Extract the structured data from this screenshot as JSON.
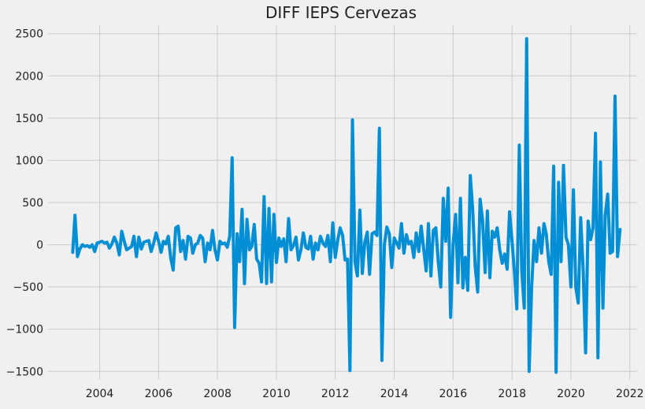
{
  "chart_data": {
    "type": "line",
    "title": "DIFF IEPS Cervezas",
    "xlabel": "",
    "ylabel": "",
    "x_axis_kind": "date",
    "xlim": [
      "2002-04-01",
      "2022-04-01"
    ],
    "ylim": [
      -1600,
      2600
    ],
    "x_ticks": [
      {
        "value": "2004-01-01",
        "label": "2004"
      },
      {
        "value": "2006-01-01",
        "label": "2006"
      },
      {
        "value": "2008-01-01",
        "label": "2008"
      },
      {
        "value": "2010-01-01",
        "label": "2010"
      },
      {
        "value": "2012-01-01",
        "label": "2012"
      },
      {
        "value": "2014-01-01",
        "label": "2014"
      },
      {
        "value": "2016-01-01",
        "label": "2016"
      },
      {
        "value": "2018-01-01",
        "label": "2018"
      },
      {
        "value": "2020-01-01",
        "label": "2020"
      },
      {
        "value": "2022-01-01",
        "label": "2022"
      }
    ],
    "y_ticks": [
      {
        "value": 2500,
        "label": "2500"
      },
      {
        "value": 2000,
        "label": "2000"
      },
      {
        "value": 1500,
        "label": "1500"
      },
      {
        "value": 1000,
        "label": "1000"
      },
      {
        "value": 500,
        "label": "500"
      },
      {
        "value": 0,
        "label": "0"
      },
      {
        "value": -500,
        "label": "−500"
      },
      {
        "value": -1000,
        "label": "−1000"
      },
      {
        "value": -1500,
        "label": "−1500"
      }
    ],
    "grid": true,
    "legend": "none",
    "series": [
      {
        "color": "#008fd5",
        "start": "2003-02",
        "frequency": "monthly",
        "values": [
          -90,
          350,
          -140,
          -50,
          0,
          -20,
          -10,
          -30,
          0,
          -80,
          20,
          30,
          40,
          20,
          30,
          -40,
          10,
          90,
          20,
          -120,
          160,
          40,
          -60,
          -40,
          -20,
          100,
          -140,
          90,
          -50,
          30,
          40,
          50,
          -80,
          20,
          140,
          40,
          -90,
          40,
          10,
          100,
          -160,
          -300,
          200,
          220,
          -80,
          50,
          -170,
          100,
          80,
          -100,
          0,
          20,
          110,
          80,
          -200,
          20,
          -60,
          170,
          -60,
          -180,
          40,
          10,
          20,
          -30,
          100,
          1030,
          -980,
          130,
          -200,
          420,
          -460,
          300,
          -60,
          -20,
          240,
          -170,
          -220,
          -440,
          570,
          -460,
          430,
          -440,
          360,
          -210,
          80,
          -20,
          70,
          -200,
          310,
          -60,
          -10,
          90,
          -180,
          -60,
          140,
          -30,
          -50,
          100,
          -170,
          20,
          -60,
          100,
          20,
          -20,
          110,
          -200,
          260,
          -150,
          60,
          200,
          110,
          -180,
          -170,
          -1490,
          1480,
          -200,
          -370,
          410,
          -340,
          30,
          150,
          -350,
          130,
          150,
          110,
          1380,
          -1370,
          0,
          210,
          130,
          -270,
          80,
          20,
          -40,
          250,
          -100,
          120,
          10,
          40,
          -150,
          140,
          -80,
          220,
          -50,
          -310,
          250,
          -370,
          170,
          200,
          -200,
          -500,
          550,
          40,
          670,
          -860,
          0,
          360,
          -450,
          550,
          -510,
          -150,
          -540,
          820,
          400,
          -260,
          -560,
          540,
          290,
          -330,
          400,
          -390,
          160,
          90,
          200,
          -60,
          -220,
          -110,
          -290,
          390,
          40,
          -340,
          -760,
          1180,
          -300,
          -750,
          2440,
          -1500,
          -500,
          50,
          -200,
          200,
          -100,
          250,
          130,
          -200,
          -350,
          930,
          -1510,
          740,
          -200,
          940,
          90,
          0,
          -500,
          650,
          -500,
          -690,
          320,
          -300,
          -1280,
          280,
          60,
          200,
          1320,
          -1340,
          980,
          -750,
          350,
          600,
          -100,
          -80,
          1760,
          -140,
          180
        ]
      }
    ]
  }
}
